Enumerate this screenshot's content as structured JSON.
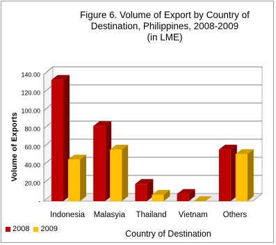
{
  "chart_data": {
    "type": "bar",
    "title_lines": [
      "Figure 6.  Volume of Export by Country of",
      "Destination, Philippines, 2008-2009",
      "(in LME)"
    ],
    "xlabel": "Country of Destination",
    "ylabel": "Volume of Exports",
    "categories": [
      "Indonesia",
      "Malasyia",
      "Thailand",
      "Vietnam",
      "Others"
    ],
    "series": [
      {
        "name": "2008",
        "color": "#c00000",
        "values": [
          134,
          83,
          19,
          8,
          57
        ]
      },
      {
        "name": "2009",
        "color": "#ffc000",
        "values": [
          46,
          57,
          7,
          0,
          52
        ]
      }
    ],
    "ylim": [
      0,
      140
    ],
    "ytick_labels": [
      "-",
      "20.00",
      "40.00",
      "60.00",
      "80.00",
      "100.00",
      "120.00",
      "140.00"
    ],
    "grid": true,
    "legend_position": "bottom-left"
  }
}
